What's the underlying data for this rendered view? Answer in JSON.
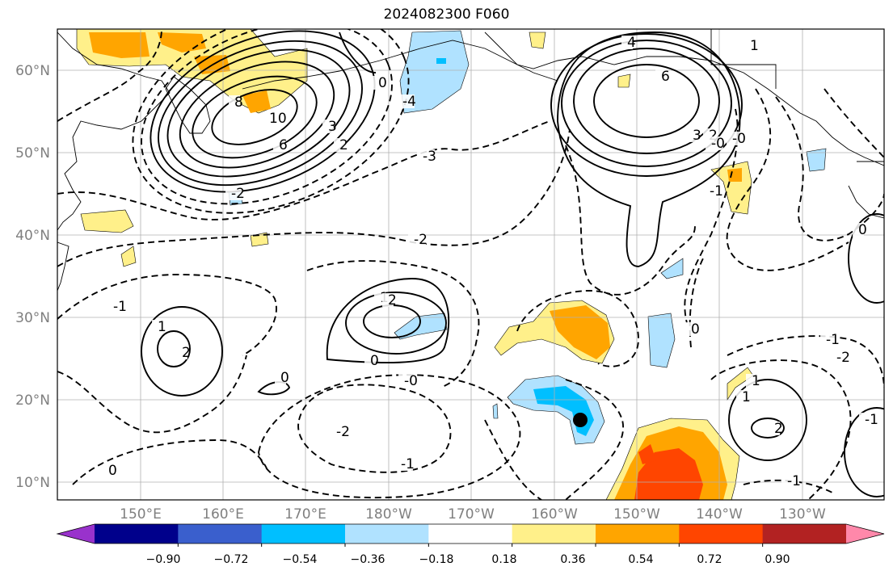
{
  "title": "2024082300 F060",
  "map": {
    "lat_labels": [
      "60°N",
      "50°N",
      "40°N",
      "30°N",
      "20°N",
      "10°N"
    ],
    "lon_labels": [
      "150°E",
      "160°E",
      "170°E",
      "180°W",
      "170°W",
      "160°W",
      "150°W",
      "140°W",
      "130°W"
    ],
    "contour_labels": [
      "4",
      "6",
      "8",
      "10",
      "6",
      "3",
      "2",
      "1",
      "0",
      "-3",
      "-2",
      "-1",
      "1",
      "2",
      "2",
      "1",
      "0",
      "0",
      "-2",
      "-1",
      "-0",
      "0",
      "0",
      "-1",
      "-2",
      "1",
      "2",
      "-1",
      "0",
      "-0",
      "-0",
      "1",
      "-1",
      "3",
      "2",
      "-4",
      "-2",
      "-1"
    ]
  },
  "colorbar": {
    "tick_labels": [
      "−0.90",
      "−0.72",
      "−0.54",
      "−0.36",
      "−0.18",
      "0.18",
      "0.36",
      "0.54",
      "0.72",
      "0.90"
    ],
    "colors": [
      "#9932cc",
      "#00008b",
      "#3a5fcd",
      "#00bfff",
      "#b0e2ff",
      "#ffffff",
      "#fff08a",
      "#ffa500",
      "#ff4500",
      "#b22222",
      "#ff88aa"
    ]
  }
}
